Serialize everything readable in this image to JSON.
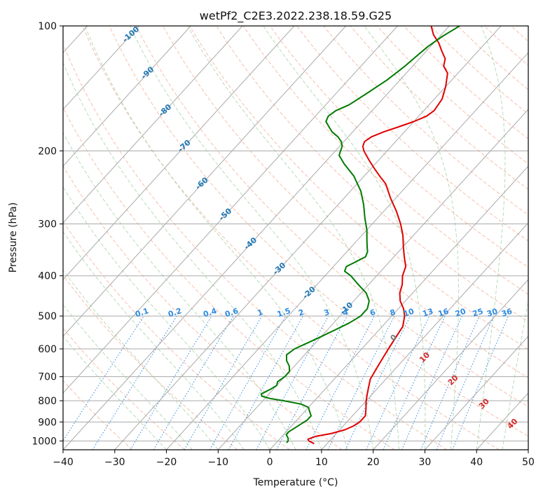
{
  "chart_data": {
    "type": "line",
    "title": "wetPf2_C2E3.2022.238.18.59.G25",
    "xlabel": "Temperature (°C)",
    "ylabel": "Pressure (hPa)",
    "xlim": [
      -40,
      50
    ],
    "ylim": [
      1050,
      100
    ],
    "y_scale": "log",
    "grid": true,
    "x_ticks": [
      -40,
      -30,
      -20,
      -10,
      0,
      10,
      20,
      30,
      40,
      50
    ],
    "y_ticks": [
      1000,
      900,
      800,
      700,
      600,
      500,
      400,
      300,
      200,
      100
    ],
    "background_lines": {
      "isotherms_solid_gray": true,
      "dry_adiabats_dashed": true,
      "moist_adiabats_dashed": true,
      "mixing_ratio_dotted": true
    },
    "temperature_axis_labels": [
      -100,
      -90,
      -80,
      -70,
      -60,
      -50,
      -40,
      -30,
      -20,
      -10
    ],
    "mixing_ratio_labels": [
      "0.1",
      "0.2",
      "0.4",
      "0.6",
      "1",
      "1.5",
      "2",
      "3",
      "4",
      "6",
      "8",
      "10",
      "13",
      "16",
      "20",
      "25",
      "30",
      "36"
    ],
    "moist_adiabat_labels": [
      0,
      10,
      20,
      30,
      40
    ],
    "series": [
      {
        "color": "#e00000",
        "points": [
          [
            1015,
            7.5
          ],
          [
            1000,
            6.0
          ],
          [
            990,
            5.5
          ],
          [
            975,
            6.5
          ],
          [
            960,
            9.0
          ],
          [
            940,
            11.0
          ],
          [
            920,
            12.0
          ],
          [
            900,
            12.5
          ],
          [
            870,
            12.5
          ],
          [
            840,
            11.5
          ],
          [
            800,
            10.0
          ],
          [
            770,
            9.0
          ],
          [
            740,
            8.0
          ],
          [
            710,
            7.0
          ],
          [
            680,
            6.5
          ],
          [
            650,
            6.0
          ],
          [
            620,
            5.5
          ],
          [
            590,
            5.0
          ],
          [
            560,
            4.5
          ],
          [
            530,
            4.0
          ],
          [
            500,
            2.5
          ],
          [
            480,
            1.0
          ],
          [
            460,
            -1.0
          ],
          [
            440,
            -2.5
          ],
          [
            420,
            -3.5
          ],
          [
            400,
            -5.0
          ],
          [
            380,
            -6.0
          ],
          [
            360,
            -8.0
          ],
          [
            340,
            -10.0
          ],
          [
            320,
            -12.0
          ],
          [
            300,
            -14.5
          ],
          [
            280,
            -17.5
          ],
          [
            260,
            -21.0
          ],
          [
            240,
            -24.5
          ],
          [
            230,
            -27.0
          ],
          [
            220,
            -29.5
          ],
          [
            210,
            -32.0
          ],
          [
            200,
            -34.5
          ],
          [
            195,
            -35.5
          ],
          [
            190,
            -36.0
          ],
          [
            185,
            -35.5
          ],
          [
            180,
            -34.0
          ],
          [
            175,
            -32.0
          ],
          [
            170,
            -30.0
          ],
          [
            165,
            -28.5
          ],
          [
            160,
            -28.0
          ],
          [
            150,
            -28.5
          ],
          [
            140,
            -30.0
          ],
          [
            130,
            -32.0
          ],
          [
            125,
            -34.0
          ],
          [
            120,
            -35.0
          ],
          [
            115,
            -37.0
          ],
          [
            110,
            -39.0
          ],
          [
            105,
            -41.5
          ],
          [
            100,
            -43.5
          ]
        ]
      },
      {
        "color": "#007a00",
        "points": [
          [
            1010,
            2.0
          ],
          [
            1000,
            2.0
          ],
          [
            985,
            1.5
          ],
          [
            965,
            0.5
          ],
          [
            950,
            0.5
          ],
          [
            930,
            1.0
          ],
          [
            910,
            1.5
          ],
          [
            890,
            2.0
          ],
          [
            870,
            2.0
          ],
          [
            850,
            1.0
          ],
          [
            830,
            0.0
          ],
          [
            815,
            -2.0
          ],
          [
            800,
            -6.0
          ],
          [
            790,
            -9.0
          ],
          [
            780,
            -11.0
          ],
          [
            770,
            -11.5
          ],
          [
            760,
            -11.0
          ],
          [
            750,
            -10.5
          ],
          [
            735,
            -10.0
          ],
          [
            720,
            -10.5
          ],
          [
            700,
            -10.0
          ],
          [
            680,
            -10.0
          ],
          [
            660,
            -11.0
          ],
          [
            640,
            -12.5
          ],
          [
            620,
            -13.5
          ],
          [
            600,
            -13.0
          ],
          [
            580,
            -11.5
          ],
          [
            560,
            -10.0
          ],
          [
            540,
            -8.5
          ],
          [
            520,
            -7.0
          ],
          [
            500,
            -6.0
          ],
          [
            480,
            -6.0
          ],
          [
            460,
            -7.0
          ],
          [
            440,
            -9.0
          ],
          [
            420,
            -12.0
          ],
          [
            400,
            -15.0
          ],
          [
            390,
            -17.0
          ],
          [
            380,
            -17.5
          ],
          [
            370,
            -16.5
          ],
          [
            360,
            -15.5
          ],
          [
            350,
            -16.0
          ],
          [
            340,
            -17.0
          ],
          [
            330,
            -18.0
          ],
          [
            310,
            -20.0
          ],
          [
            290,
            -22.5
          ],
          [
            270,
            -25.0
          ],
          [
            250,
            -28.0
          ],
          [
            230,
            -32.0
          ],
          [
            215,
            -36.0
          ],
          [
            205,
            -38.5
          ],
          [
            200,
            -39.0
          ],
          [
            195,
            -39.5
          ],
          [
            190,
            -40.5
          ],
          [
            185,
            -42.0
          ],
          [
            180,
            -44.0
          ],
          [
            175,
            -45.5
          ],
          [
            170,
            -47.0
          ],
          [
            165,
            -47.5
          ],
          [
            160,
            -47.0
          ],
          [
            155,
            -45.5
          ],
          [
            145,
            -44.0
          ],
          [
            135,
            -42.5
          ],
          [
            125,
            -41.5
          ],
          [
            118,
            -41.0
          ],
          [
            112,
            -40.5
          ],
          [
            106,
            -39.5
          ],
          [
            100,
            -38.0
          ]
        ]
      }
    ]
  }
}
